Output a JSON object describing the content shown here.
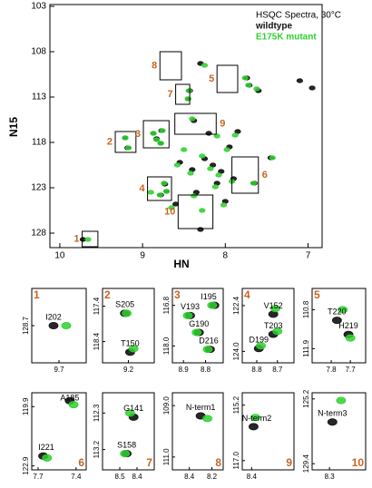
{
  "chart_data": [
    {
      "type": "scatter",
      "title": "HSQC Spectra, 30°C",
      "xlabel": "HN",
      "ylabel": "N15",
      "xlim": [
        10.12,
        6.83
      ],
      "ylim": [
        129.6,
        102.8
      ],
      "xticks": [
        10,
        9,
        8,
        7
      ],
      "yticks": [
        103,
        108,
        113,
        118,
        123,
        128
      ],
      "series": [
        {
          "name": "wildtype",
          "color": "#111111",
          "x": [
            9.72,
            9.21,
            9.18,
            8.87,
            8.83,
            8.77,
            8.78,
            8.73,
            8.71,
            8.78,
            7.74,
            7.71,
            7.45,
            7.65,
            8.43,
            8.45,
            8.3,
            8.38,
            8.3,
            8.15,
            8.05,
            8.25,
            8.4,
            8.1,
            7.95,
            8.55,
            8.0,
            7.6,
            7.1,
            6.95,
            8.2,
            7.85,
            8.6,
            7.9,
            8.35
          ],
          "values": [
            128.7,
            117.5,
            118.6,
            117.0,
            117.6,
            116.7,
            118.1,
            122.6,
            123.4,
            123.8,
            110.9,
            111.7,
            119.7,
            122.5,
            112.3,
            113.2,
            109.3,
            115.6,
            127.6,
            120.5,
            121.2,
            119.8,
            121.0,
            122.5,
            118.5,
            120.2,
            124.5,
            112.3,
            111.2,
            112.0,
            117.0,
            116.8,
            124.8,
            122.0,
            123.5
          ]
        },
        {
          "name": "E175K mutant",
          "color": "#2fd02f",
          "x": [
            9.66,
            9.21,
            9.17,
            8.87,
            8.83,
            8.76,
            8.78,
            8.74,
            8.71,
            8.79,
            7.76,
            7.72,
            7.43,
            7.66,
            8.44,
            8.45,
            8.25,
            8.4,
            8.28,
            8.18,
            8.08,
            8.28,
            8.42,
            8.12,
            7.98,
            8.58,
            8.02,
            7.62,
            8.5,
            8.9,
            8.1,
            7.88,
            8.65,
            7.92,
            8.38
          ],
          "values": [
            128.7,
            117.5,
            118.6,
            117.0,
            117.7,
            116.7,
            118.1,
            122.5,
            123.4,
            123.8,
            110.9,
            111.7,
            119.7,
            122.5,
            112.3,
            113.2,
            109.5,
            115.4,
            125.5,
            120.9,
            121.6,
            119.5,
            121.4,
            122.9,
            118.8,
            120.5,
            124.9,
            112.1,
            118.8,
            123.5,
            117.3,
            117.2,
            125.2,
            122.3,
            123.9
          ]
        }
      ],
      "box_label_color": "#c8641e",
      "boxes": [
        {
          "label": "1",
          "xlim": [
            9.73,
            9.54
          ],
          "ylim": [
            129.5,
            127.8
          ]
        },
        {
          "label": "2",
          "xlim": [
            9.33,
            9.08
          ],
          "ylim": [
            119.1,
            116.8
          ]
        },
        {
          "label": "3",
          "xlim": [
            8.99,
            8.68
          ],
          "ylim": [
            118.6,
            115.6
          ]
        },
        {
          "label": "4",
          "xlim": [
            8.94,
            8.65
          ],
          "ylim": [
            124.4,
            121.8
          ]
        },
        {
          "label": "5",
          "xlim": [
            8.1,
            7.85
          ],
          "ylim": [
            112.5,
            109.5
          ]
        },
        {
          "label": "6",
          "xlim": [
            7.92,
            7.6
          ],
          "ylim": [
            123.6,
            119.6
          ]
        },
        {
          "label": "7",
          "xlim": [
            8.6,
            8.43
          ],
          "ylim": [
            113.8,
            111.6
          ]
        },
        {
          "label": "8",
          "xlim": [
            8.79,
            8.53
          ],
          "ylim": [
            111.1,
            108.0
          ]
        },
        {
          "label": "9",
          "xlim": [
            8.61,
            8.11
          ],
          "ylim": [
            117.1,
            114.8
          ]
        },
        {
          "label": "10",
          "xlim": [
            8.57,
            8.15
          ],
          "ylim": [
            127.5,
            123.8
          ]
        }
      ]
    },
    {
      "type": "scatter",
      "label": "1",
      "xlim": [
        9.85,
        9.55
      ],
      "ylim": [
        129.6,
        127.8
      ],
      "xticks": [
        9.7
      ],
      "yticks": [
        128.7
      ],
      "peak_labels": [
        "I202"
      ],
      "series": [
        {
          "color": "#111111",
          "x": [
            9.73
          ],
          "values": [
            128.7
          ]
        },
        {
          "color": "#2fd02f",
          "x": [
            9.66
          ],
          "values": [
            128.7
          ]
        }
      ]
    },
    {
      "type": "scatter",
      "label": "2",
      "xlim": [
        9.35,
        9.05
      ],
      "ylim": [
        119.0,
        116.9
      ],
      "xticks": [
        9.2
      ],
      "yticks": [
        117.4,
        118.4
      ],
      "peak_labels": [
        "S205",
        "T150"
      ],
      "series": [
        {
          "color": "#111111",
          "x": [
            9.22,
            9.19
          ],
          "values": [
            117.6,
            118.7
          ]
        },
        {
          "color": "#2fd02f",
          "x": [
            9.21,
            9.17
          ],
          "values": [
            117.6,
            118.6
          ]
        }
      ]
    },
    {
      "type": "scatter",
      "label": "3",
      "xlim": [
        8.95,
        8.72
      ],
      "ylim": [
        118.5,
        116.3
      ],
      "xticks": [
        8.9,
        8.8
      ],
      "yticks": [
        116.8,
        {
          "value": 118,
          "label": "118.0"
        }
      ],
      "peak_labels": [
        "I195",
        "V193",
        "G190",
        "D216"
      ],
      "series": [
        {
          "color": "#111111",
          "x": [
            8.76,
            8.87,
            8.83,
            8.78
          ],
          "values": [
            116.8,
            117.1,
            117.6,
            118.1
          ]
        },
        {
          "color": "#2fd02f",
          "x": [
            8.77,
            8.88,
            8.84,
            8.79
          ],
          "values": [
            116.8,
            117.1,
            117.6,
            118.1
          ]
        }
      ]
    },
    {
      "type": "scatter",
      "label": "4",
      "xlim": [
        8.87,
        8.62
      ],
      "ylim": [
        124.4,
        121.8
      ],
      "xticks": [
        8.8,
        8.7
      ],
      "yticks": [
        122.4,
        {
          "value": 124,
          "label": "124.0"
        }
      ],
      "peak_labels": [
        "V152",
        "T203",
        "D199"
      ],
      "series": [
        {
          "color": "#111111",
          "x": [
            8.72,
            8.72,
            8.79
          ],
          "values": [
            122.7,
            123.4,
            123.9
          ]
        },
        {
          "color": "#2fd02f",
          "x": [
            8.71,
            8.7,
            8.78
          ],
          "values": [
            122.5,
            123.3,
            123.8
          ]
        }
      ]
    },
    {
      "type": "scatter",
      "label": "5",
      "xlim": [
        7.9,
        7.62
      ],
      "ylim": [
        112.3,
        110.2
      ],
      "xticks": [
        7.8,
        7.7
      ],
      "yticks": [
        110.8,
        111.9
      ],
      "peak_labels": [
        "T220",
        "H219"
      ],
      "series": [
        {
          "color": "#111111",
          "x": [
            7.77,
            7.71
          ],
          "values": [
            111.1,
            111.5
          ]
        },
        {
          "color": "#2fd02f",
          "x": [
            7.74,
            7.7
          ],
          "values": [
            110.8,
            111.6
          ]
        }
      ]
    },
    {
      "type": "scatter",
      "label": "6",
      "xlim": [
        7.75,
        7.32
      ],
      "ylim": [
        123.1,
        119.2
      ],
      "xticks": [
        7.7,
        7.4
      ],
      "yticks": [
        119.9,
        122.9
      ],
      "peak_labels": [
        "A185",
        "I221"
      ],
      "series": [
        {
          "color": "#111111",
          "x": [
            7.45,
            7.66
          ],
          "values": [
            119.6,
            122.4
          ]
        },
        {
          "color": "#2fd02f",
          "x": [
            7.42,
            7.63
          ],
          "values": [
            119.8,
            122.5
          ]
        }
      ]
    },
    {
      "type": "scatter",
      "label": "7",
      "xlim": [
        8.6,
        8.3
      ],
      "ylim": [
        113.7,
        111.8
      ],
      "xticks": [
        8.5,
        8.4
      ],
      "yticks": [
        112.3,
        113.2
      ],
      "peak_labels": [
        "G141",
        "S158"
      ],
      "series": [
        {
          "color": "#111111",
          "x": [
            8.42,
            8.46
          ],
          "values": [
            112.4,
            113.3
          ]
        },
        {
          "color": "#2fd02f",
          "x": [
            8.44,
            8.47
          ],
          "values": [
            112.3,
            113.3
          ]
        }
      ]
    },
    {
      "type": "scatter",
      "label": "8",
      "xlim": [
        8.55,
        8.1
      ],
      "ylim": [
        111.5,
        108.5
      ],
      "xticks": [
        8.4,
        8.2
      ],
      "yticks": [
        {
          "value": 109,
          "label": "109.0"
        },
        {
          "value": 111,
          "label": "111.0"
        }
      ],
      "peak_labels": [
        "N-term1"
      ],
      "series": [
        {
          "color": "#111111",
          "x": [
            8.3
          ],
          "values": [
            109.4
          ]
        },
        {
          "color": "#2fd02f",
          "x": [
            8.24
          ],
          "values": [
            109.5
          ]
        }
      ]
    },
    {
      "type": "scatter",
      "label": "9",
      "xlim": [
        8.5,
        7.95
      ],
      "ylim": [
        117.3,
        114.8
      ],
      "xticks": [
        8.4
      ],
      "yticks": [
        115.2,
        {
          "value": 117,
          "label": "117.0"
        }
      ],
      "peak_labels": [
        "N-term2"
      ],
      "series": [
        {
          "color": "#111111",
          "x": [
            8.38
          ],
          "values": [
            115.9
          ]
        },
        {
          "color": "#2fd02f",
          "x": [
            8.36
          ],
          "values": [
            115.6
          ]
        }
      ]
    },
    {
      "type": "scatter",
      "label": "10",
      "xlim": [
        8.42,
        8.05
      ],
      "ylim": [
        129.8,
        124.8
      ],
      "xticks": [
        8.3
      ],
      "yticks": [
        125.2,
        129.4
      ],
      "peak_labels": [
        "N-term3"
      ],
      "series": [
        {
          "color": "#111111",
          "x": [
            8.28
          ],
          "values": [
            126.7
          ]
        },
        {
          "color": "#2fd02f",
          "x": [
            8.22
          ],
          "values": [
            125.3
          ]
        }
      ]
    }
  ]
}
